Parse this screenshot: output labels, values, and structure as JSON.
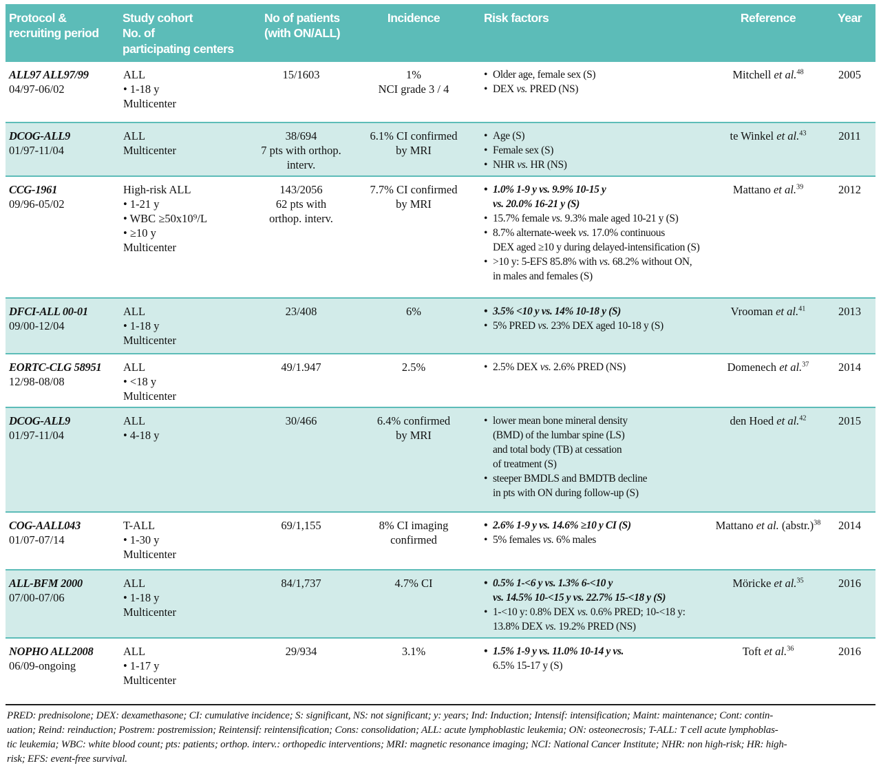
{
  "colors": {
    "header_teal": "#5cbcb8",
    "row_alt": "#d2ebe9",
    "separator": "#5cbcb8",
    "footnote_rule": "#1c1c1c"
  },
  "table": {
    "header": {
      "cols": [
        {
          "label": "Protocol &\nrecruiting period"
        },
        {
          "label": "Study cohort\nNo. of\nparticipating centers"
        },
        {
          "label": "No of patients\n(with ON/ALL)"
        },
        {
          "label": "Incidence"
        },
        {
          "label": "Risk factors"
        },
        {
          "label": "Reference"
        },
        {
          "label": "Year"
        }
      ]
    },
    "rows": [
      {
        "shaded": false,
        "protocol": "ALL97 ALL97/99",
        "period": "04/97-06/02",
        "cohort": "ALL\n• 1-18 y\nMulticenter",
        "patients": "15/1603",
        "incidence": "1%\nNCI grade 3 / 4",
        "risk_factors": [
          {
            "bullet": true,
            "bold": false,
            "text": "Older age, female sex (S)"
          },
          {
            "bullet": true,
            "bold": false,
            "text": "DEX vs. PRED (NS)"
          }
        ],
        "reference": {
          "pre": "Mitchell",
          "etal": "et al.",
          "post": "",
          "sup": "48"
        },
        "year": "2005"
      },
      {
        "shaded": true,
        "protocol": "DCOG-ALL9",
        "period": "01/97-11/04",
        "cohort": "ALL\nMulticenter",
        "patients": "38/694\n7 pts with orthop.\ninterv.",
        "incidence": "6.1% CI confirmed\nby MRI",
        "risk_factors": [
          {
            "bullet": true,
            "bold": false,
            "text": "Age (S)"
          },
          {
            "bullet": true,
            "bold": false,
            "text": "Female sex (S)"
          },
          {
            "bullet": true,
            "bold": false,
            "text": "NHR vs. HR (NS)"
          }
        ],
        "reference": {
          "pre": "te Winkel",
          "etal": "et al.",
          "post": "",
          "sup": "43"
        },
        "year": "2011"
      },
      {
        "shaded": false,
        "protocol": "CCG-1961",
        "period": "09/96-05/02",
        "cohort": "High-risk ALL\n• 1-21 y\n• WBC ≥50x10⁹/L\n• ≥10 y\nMulticenter",
        "patients": "143/2056\n62 pts with\northop. interv.",
        "incidence": "7.7% CI confirmed\nby MRI",
        "risk_factors": [
          {
            "bullet": true,
            "bold": true,
            "text": "1.0% 1-9 y vs. 9.9% 10-15 y"
          },
          {
            "bullet": false,
            "bold": true,
            "text": "vs. 20.0% 16-21 y (S)"
          },
          {
            "bullet": true,
            "bold": false,
            "text": "15.7% female vs. 9.3% male aged 10-21 y (S)"
          },
          {
            "bullet": true,
            "bold": false,
            "text": "8.7% alternate-week vs. 17.0% continuous"
          },
          {
            "bullet": false,
            "bold": false,
            "text": "DEX aged ≥10 y during delayed-intensification (S)"
          },
          {
            "bullet": true,
            "bold": false,
            "text": ">10 y: 5-EFS 85.8% with vs. 68.2% without ON,"
          },
          {
            "bullet": false,
            "bold": false,
            "text": "in males and females (S)"
          }
        ],
        "reference": {
          "pre": "Mattano",
          "etal": "et al.",
          "post": "",
          "sup": "39"
        },
        "year": "2012"
      },
      {
        "shaded": true,
        "protocol": "DFCI-ALL 00-01",
        "period": "09/00-12/04",
        "cohort": "ALL\n• 1-18 y\nMulticenter",
        "patients": "23/408",
        "incidence": "6%",
        "risk_factors": [
          {
            "bullet": true,
            "bold": true,
            "text": "3.5% <10 y vs. 14% 10-18 y (S)"
          },
          {
            "bullet": true,
            "bold": false,
            "text": "5% PRED vs. 23% DEX aged 10-18 y (S)"
          }
        ],
        "reference": {
          "pre": "Vrooman",
          "etal": "et al.",
          "post": "",
          "sup": "41"
        },
        "year": "2013"
      },
      {
        "shaded": false,
        "protocol": "EORTC-CLG 58951",
        "period": "12/98-08/08",
        "cohort": "ALL\n• <18 y\nMulticenter",
        "patients": "49/1.947",
        "incidence": "2.5%",
        "risk_factors": [
          {
            "bullet": true,
            "bold": false,
            "text": "2.5% DEX vs. 2.6% PRED (NS)"
          }
        ],
        "reference": {
          "pre": "Domenech",
          "etal": "et al.",
          "post": "",
          "sup": "37"
        },
        "year": "2014"
      },
      {
        "shaded": true,
        "protocol": "DCOG-ALL9",
        "period": "01/97-11/04",
        "cohort": "ALL\n• 4-18 y",
        "patients": "30/466",
        "incidence": "6.4% confirmed\nby MRI",
        "risk_factors": [
          {
            "bullet": true,
            "bold": false,
            "text": "lower mean bone mineral density"
          },
          {
            "bullet": false,
            "bold": false,
            "text": "(BMD) of the lumbar spine (LS)"
          },
          {
            "bullet": false,
            "bold": false,
            "text": "and total body (TB) at cessation"
          },
          {
            "bullet": false,
            "bold": false,
            "text": "of treatment (S)"
          },
          {
            "bullet": true,
            "bold": false,
            "text": "steeper BMDLS and BMDTB decline"
          },
          {
            "bullet": false,
            "bold": false,
            "text": "in pts with ON during follow-up (S)"
          }
        ],
        "reference": {
          "pre": "den Hoed",
          "etal": "et al.",
          "post": "",
          "sup": "42"
        },
        "year": "2015"
      },
      {
        "shaded": false,
        "protocol": "COG-AALL043",
        "period": "01/07-07/14",
        "cohort": "T-ALL\n• 1-30 y\nMulticenter",
        "patients": "69/1,155",
        "incidence": "8% CI imaging\nconfirmed",
        "risk_factors": [
          {
            "bullet": true,
            "bold": true,
            "text": "2.6% 1-9 y vs. 14.6% ≥10 y CI (S)"
          },
          {
            "bullet": true,
            "bold": false,
            "text": "5% females vs. 6% males"
          }
        ],
        "reference": {
          "pre": "Mattano",
          "etal": "et al.",
          "post": " (abstr.)",
          "sup": "38"
        },
        "year": "2014"
      },
      {
        "shaded": true,
        "protocol": "ALL-BFM 2000",
        "period": "07/00-07/06",
        "cohort": "ALL\n• 1-18 y\nMulticenter",
        "patients": "84/1,737",
        "incidence": "4.7% CI",
        "risk_factors": [
          {
            "bullet": true,
            "bold": true,
            "text": "0.5% 1-<6 y vs. 1.3% 6-<10 y"
          },
          {
            "bullet": false,
            "bold": true,
            "text": "vs. 14.5% 10-<15 y vs. 22.7% 15-<18 y (S)"
          },
          {
            "bullet": true,
            "bold": false,
            "text": "1-<10 y: 0.8% DEX vs. 0.6% PRED; 10-<18 y:"
          },
          {
            "bullet": false,
            "bold": false,
            "text": "13.8% DEX vs. 19.2% PRED (NS)"
          }
        ],
        "reference": {
          "pre": "Möricke",
          "etal": "et al.",
          "post": "",
          "sup": "35"
        },
        "year": "2016"
      },
      {
        "shaded": false,
        "protocol": "NOPHO ALL2008",
        "period": "06/09-ongoing",
        "cohort": "ALL\n• 1-17 y\nMulticenter",
        "patients": "29/934",
        "incidence": "3.1%",
        "risk_factors": [
          {
            "bullet": true,
            "bold": true,
            "text": "1.5% 1-9 y vs. 11.0% 10-14 y vs."
          },
          {
            "bullet": false,
            "bold": false,
            "text": "6.5% 15-17 y (S)"
          }
        ],
        "reference": {
          "pre": "Toft",
          "etal": "et al.",
          "post": "",
          "sup": "36"
        },
        "year": "2016"
      }
    ],
    "footnote": "PRED: prednisolone; DEX: dexamethasone; CI: cumulative incidence; S: significant, NS: not significant; y: years; Ind: Induction; Intensif: intensification; Maint: maintenance; Cont: contin-\nuation; Reind: reinduction; Postrem: postremission; Reintensif: reintensification; Cons: consolidation; ALL: acute lymphoblastic leukemia; ON: osteonecrosis; T-ALL: T cell acute lymphoblas-\ntic leukemia; WBC: white blood count; pts: patients; orthop. interv.: orthopedic interventions; MRI: magnetic resonance imaging; NCI: National Cancer Institute; NHR: non high-risk; HR: high-\nrisk; EFS: event-free survival."
  }
}
